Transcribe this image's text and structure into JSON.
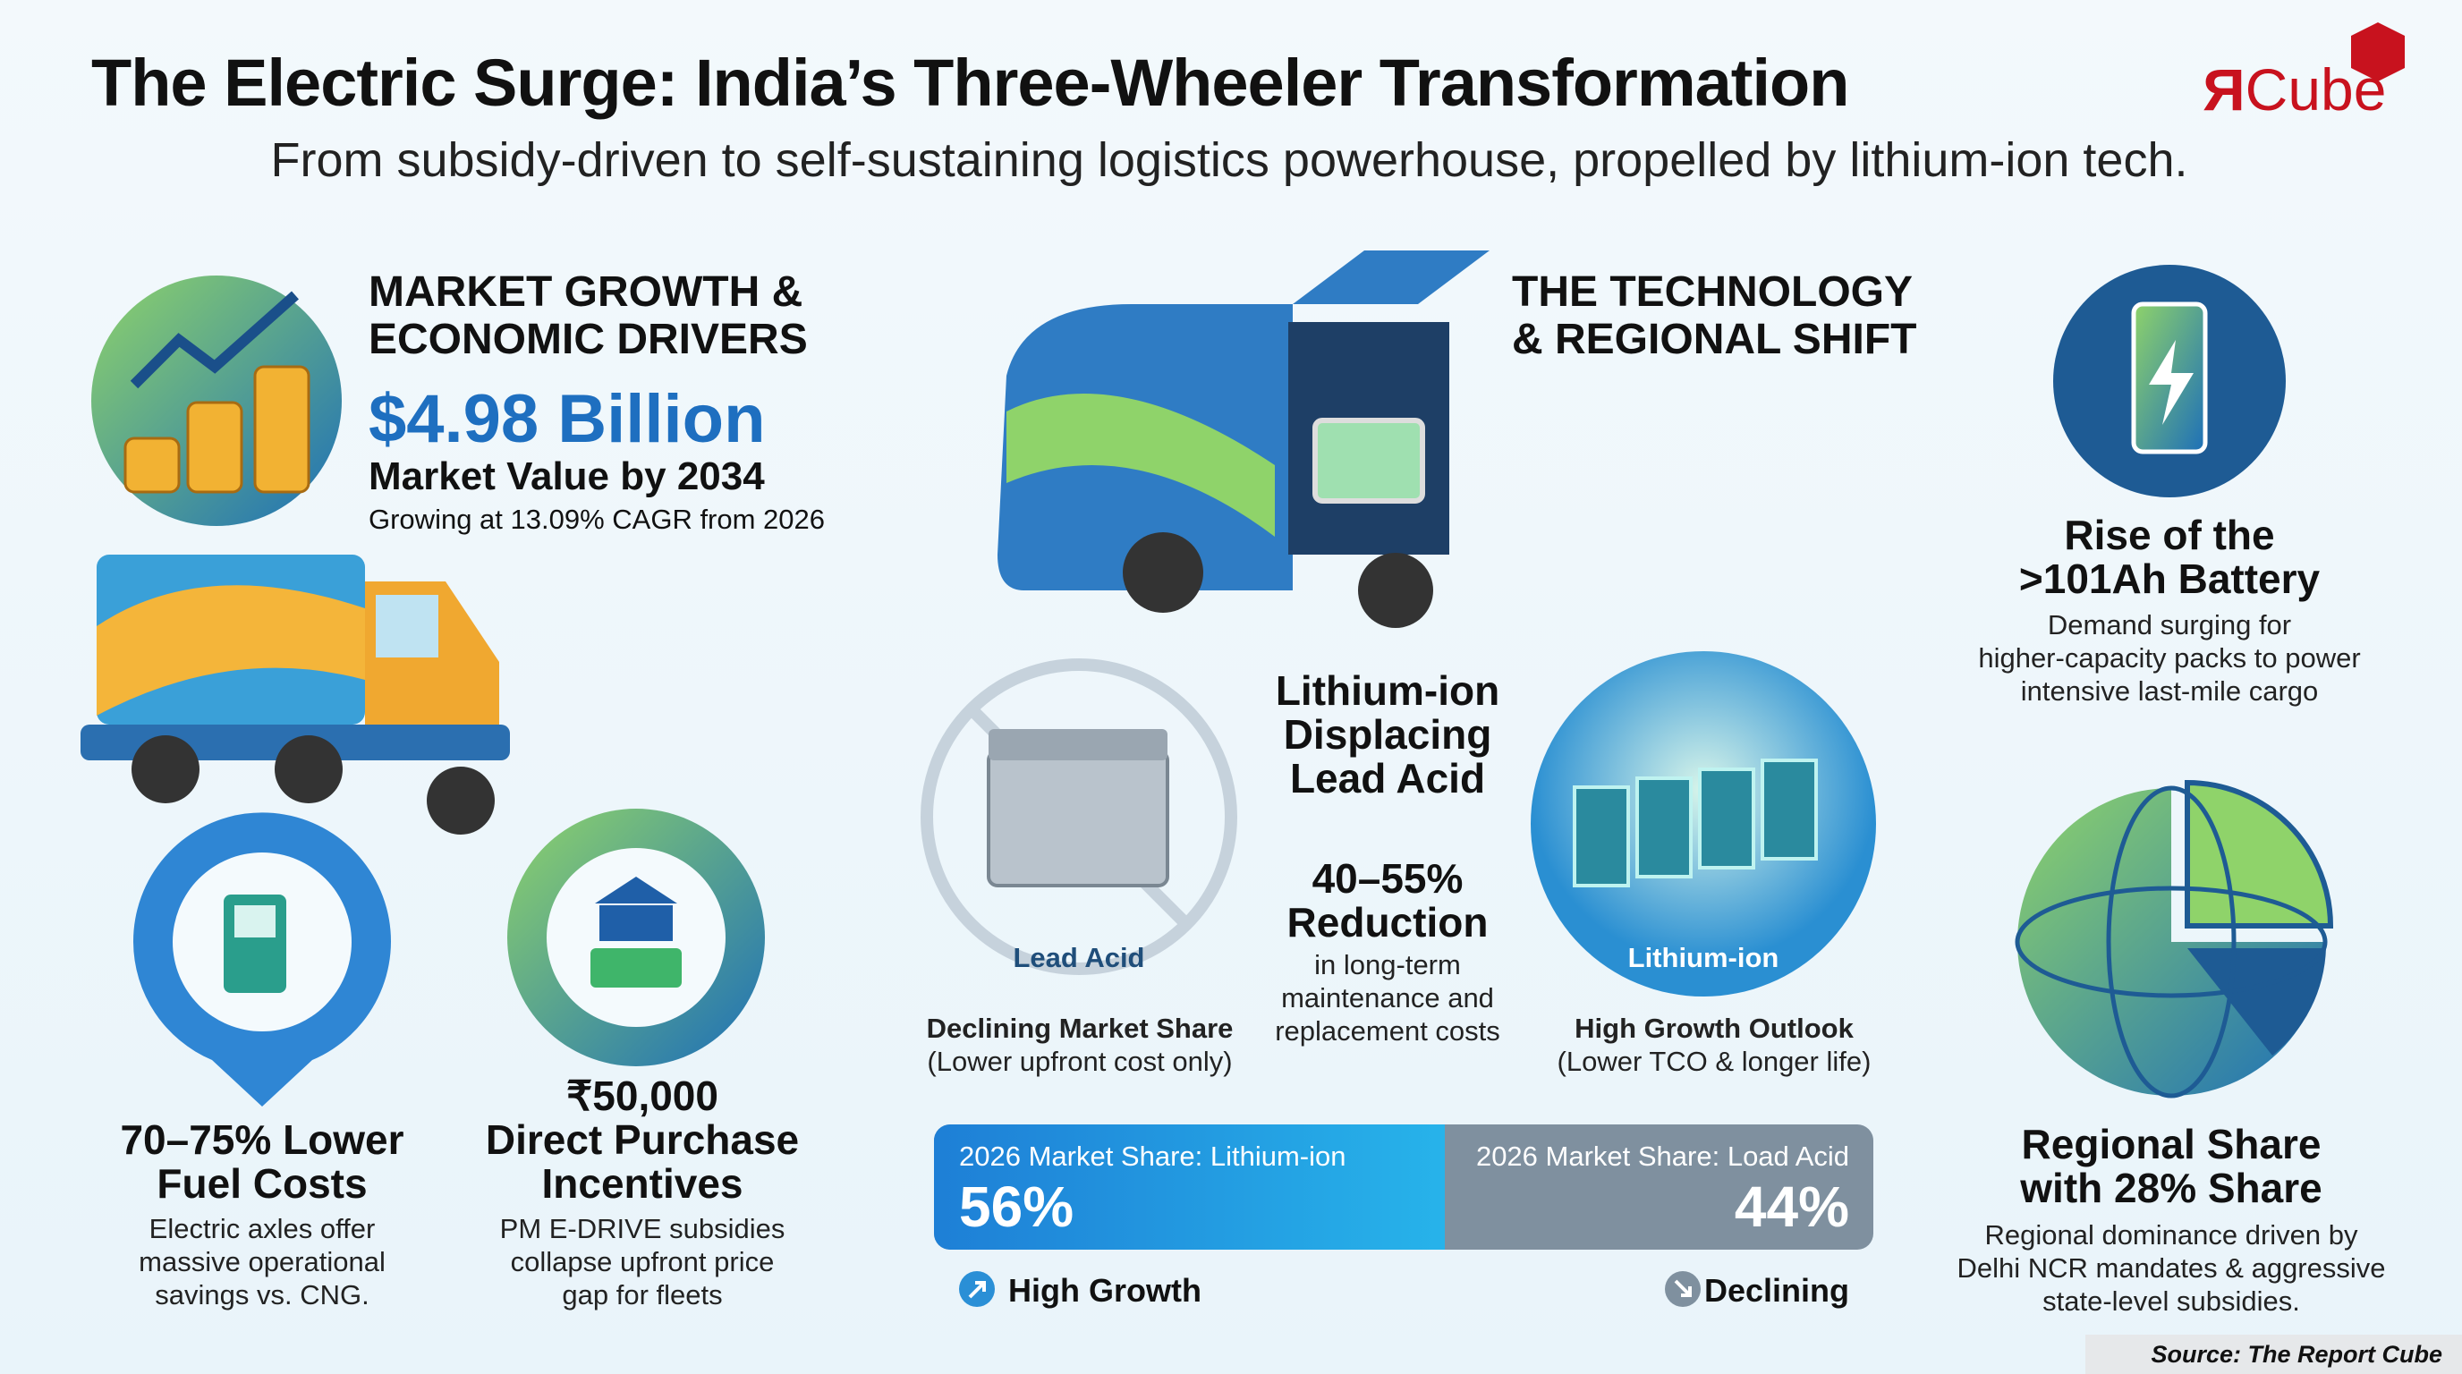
{
  "header": {
    "title": "The Electric Surge: India’s Three-Wheeler Transformation",
    "subtitle": "From subsidy-driven to self-sustaining logistics powerhouse, propelled by lithium-ion tech.",
    "logo": {
      "mark": "R",
      "text": "Cube"
    }
  },
  "market_growth": {
    "heading_lines": [
      "MARKET GROWTH &",
      "ECONOMIC DRIVERS"
    ],
    "value": "$4.98 Billion",
    "label": "Market Value by 2034",
    "note": "Growing at 13.09% CAGR from 2026"
  },
  "fuel_costs": {
    "title_lines": [
      "70–75% Lower",
      "Fuel Costs"
    ],
    "description_lines": [
      "Electric axles offer",
      "massive operational",
      "savings vs. CNG."
    ]
  },
  "incentives": {
    "title_lines": [
      "₹50,000",
      "Direct Purchase",
      "Incentives"
    ],
    "description_lines": [
      "PM E-DRIVE subsidies",
      "collapse upfront price",
      "gap for fleets"
    ]
  },
  "technology": {
    "heading_lines": [
      "THE TECHNOLOGY",
      "& REGIONAL SHIFT"
    ]
  },
  "battery": {
    "title_lines": [
      "Rise of the",
      ">101Ah Battery"
    ],
    "description_lines": [
      "Demand surging for",
      "higher-capacity packs to power",
      "intensive last-mile cargo"
    ]
  },
  "lead_acid": {
    "label": "Lead Acid",
    "status": "Declining Market Share",
    "note": "(Lower upfront cost only)"
  },
  "comparison": {
    "title_lines": [
      "Lithium-ion",
      "Displacing",
      "Lead Acid"
    ],
    "stat_lines": [
      "40–55%",
      "Reduction"
    ],
    "description_lines": [
      "in long-term",
      "maintenance and",
      "replacement costs"
    ]
  },
  "lithium_ion": {
    "label": "Lithium-ion",
    "status": "High Growth Outlook",
    "note": "(Lower TCO & longer life)"
  },
  "market_share": {
    "lithium_ion": {
      "label": "2026 Market Share: Lithium-ion",
      "value": "56%"
    },
    "lead_acid": {
      "label": "2026 Market Share: Load Acid",
      "value": "44%"
    },
    "high_growth": "High Growth",
    "declining": "Declining"
  },
  "regional": {
    "title_lines": [
      "Regional Share",
      "with 28% Share"
    ],
    "description_lines": [
      "Regional dominance driven by",
      "Delhi NCR mandates & aggressive",
      "state-level subsidies."
    ]
  },
  "source": "Source: The Report Cube"
}
